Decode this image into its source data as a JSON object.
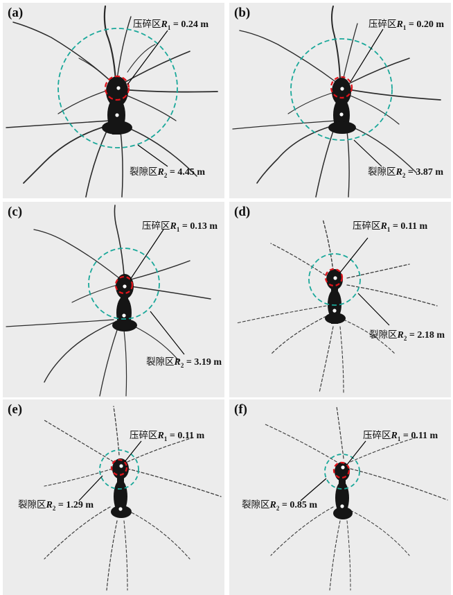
{
  "panels": [
    {
      "label": "(a)",
      "crush_zone": "压碎区",
      "crush_symbol": "R",
      "crush_sub": "1",
      "crush_value": " = 0.24 m",
      "crack_zone": "裂隙区",
      "crack_symbol": "R",
      "crack_sub": "2",
      "crack_value": " = 4.45 m"
    },
    {
      "label": "(b)",
      "crush_zone": "压碎区",
      "crush_symbol": "R",
      "crush_sub": "1",
      "crush_value": " = 0.20 m",
      "crack_zone": "裂隙区",
      "crack_symbol": "R",
      "crack_sub": "2",
      "crack_value": " = 3.87 m"
    },
    {
      "label": "(c)",
      "crush_zone": "压碎区",
      "crush_symbol": "R",
      "crush_sub": "1",
      "crush_value": " = 0.13 m",
      "crack_zone": "裂隙区",
      "crack_symbol": "R",
      "crack_sub": "2",
      "crack_value": " = 3.19 m"
    },
    {
      "label": "(d)",
      "crush_zone": "压碎区",
      "crush_symbol": "R",
      "crush_sub": "1",
      "crush_value": " = 0.11 m",
      "crack_zone": "裂隙区",
      "crack_symbol": "R",
      "crack_sub": "2",
      "crack_value": " = 2.18 m"
    },
    {
      "label": "(e)",
      "crush_zone": "压碎区",
      "crush_symbol": "R",
      "crush_sub": "1",
      "crush_value": " = 0.11 m",
      "crack_zone": "裂隙区",
      "crack_symbol": "R",
      "crack_sub": "2",
      "crack_value": " = 1.29 m"
    },
    {
      "label": "(f)",
      "crush_zone": "压碎区",
      "crush_symbol": "R",
      "crush_sub": "1",
      "crush_value": " = 0.11 m",
      "crack_zone": "裂隙区",
      "crack_symbol": "R",
      "crack_sub": "2",
      "crack_value": " = 0.85 m"
    }
  ],
  "colors": {
    "background": "#ececec",
    "crack": "#2a2a2a",
    "crush_circle": "#e0141b",
    "crack_circle": "#1aa89a",
    "borehole_dot": "#ffffff"
  }
}
